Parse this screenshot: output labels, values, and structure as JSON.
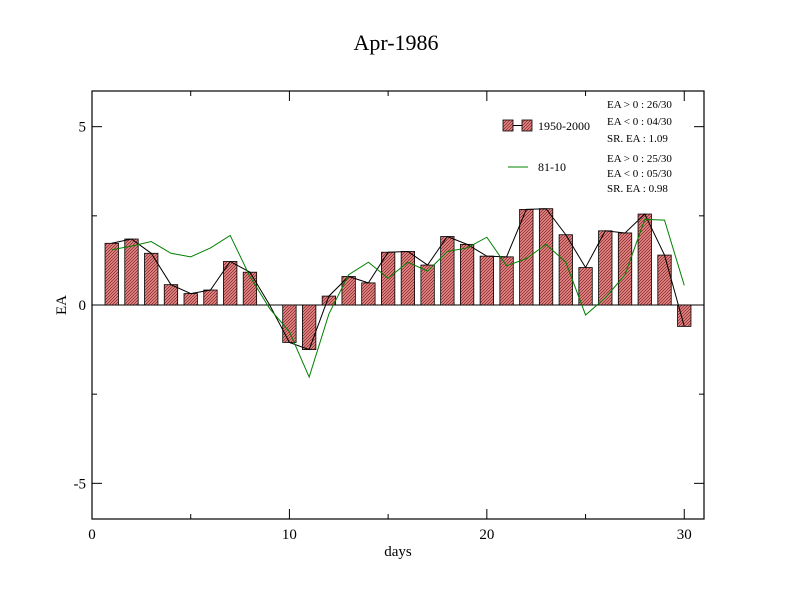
{
  "chart_data": {
    "type": "bar",
    "title": "Apr-1986",
    "xlabel": "days",
    "ylabel": "EA",
    "xlim": [
      0,
      31
    ],
    "ylim": [
      -6,
      6
    ],
    "xticks": [
      0,
      10,
      20,
      30
    ],
    "yticks": [
      -5,
      0,
      5
    ],
    "x": [
      1,
      2,
      3,
      4,
      5,
      6,
      7,
      8,
      9,
      10,
      11,
      12,
      13,
      14,
      15,
      16,
      17,
      18,
      19,
      20,
      21,
      22,
      23,
      24,
      25,
      26,
      27,
      28,
      29,
      30
    ],
    "series": [
      {
        "name": "1950-2000",
        "kind": "bar+line",
        "fill": "#e8a0a0",
        "values": [
          1.73,
          1.85,
          1.45,
          0.57,
          0.32,
          0.42,
          1.22,
          0.92,
          0.0,
          -1.05,
          -1.25,
          0.25,
          0.8,
          0.62,
          1.48,
          1.5,
          1.12,
          1.92,
          1.7,
          1.37,
          1.35,
          2.68,
          2.7,
          1.97,
          1.05,
          2.08,
          2.02,
          2.55,
          1.4,
          -0.6
        ]
      },
      {
        "name": "81-10",
        "kind": "line",
        "color": "#008000",
        "values": [
          1.55,
          1.65,
          1.78,
          1.45,
          1.35,
          1.6,
          1.95,
          0.8,
          -0.1,
          -0.75,
          -2.02,
          -0.25,
          0.85,
          1.2,
          0.75,
          1.2,
          0.95,
          1.5,
          1.6,
          1.9,
          1.1,
          1.3,
          1.7,
          1.2,
          -0.28,
          0.2,
          0.85,
          2.4,
          2.38,
          0.55
        ]
      }
    ],
    "legend": [
      {
        "label": "1950-2000",
        "stats": [
          "EA > 0 : 26/30",
          "EA < 0 : 04/30",
          "SR. EA :  1.09"
        ]
      },
      {
        "label": "81-10",
        "stats": [
          "EA > 0 : 25/30",
          "EA < 0 : 05/30",
          "SR. EA :  0.98"
        ]
      }
    ],
    "legend_position": "top-right",
    "grid": false
  }
}
